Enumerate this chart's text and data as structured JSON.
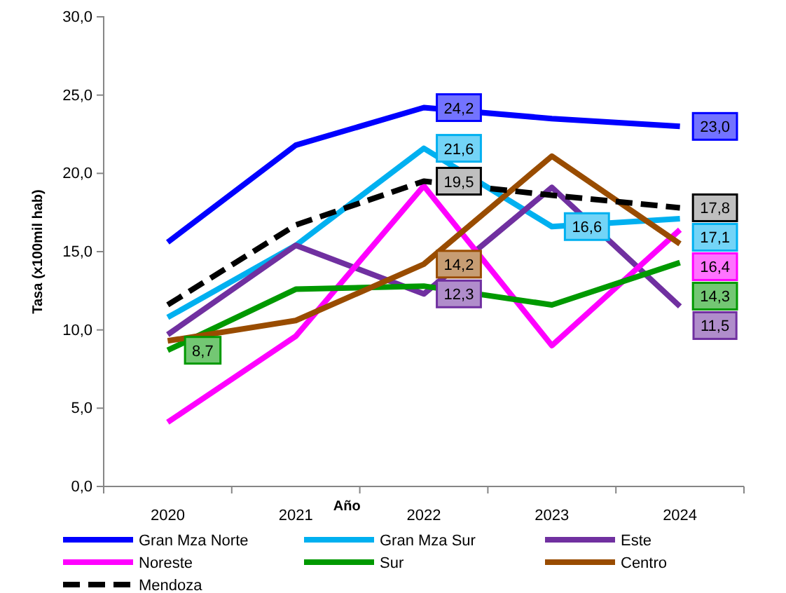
{
  "chart_data": {
    "type": "line",
    "xlabel": "Año",
    "ylabel": "Tasa (x100mil hab)",
    "categories": [
      "2020",
      "2021",
      "2022",
      "2023",
      "2024"
    ],
    "ylim": [
      0,
      30
    ],
    "yticks": [
      {
        "value": 0,
        "label": "0,0"
      },
      {
        "value": 5,
        "label": "5,0"
      },
      {
        "value": 10,
        "label": "10,0"
      },
      {
        "value": 15,
        "label": "15,0"
      },
      {
        "value": 20,
        "label": "20,0"
      },
      {
        "value": 25,
        "label": "25,0"
      },
      {
        "value": 30,
        "label": "30,0"
      }
    ],
    "grid": false,
    "legend": "bottom",
    "marker": "none",
    "series": [
      {
        "name": "Gran Mza Norte",
        "color": "#0000ff",
        "values": [
          15.6,
          21.8,
          24.2,
          23.5,
          23.0
        ],
        "value_labels": [
          null,
          null,
          "24,2",
          null,
          "23,0"
        ]
      },
      {
        "name": "Gran Mza Sur",
        "color": "#00b0f0",
        "values": [
          10.8,
          15.4,
          21.6,
          16.6,
          17.1
        ],
        "value_labels": [
          null,
          null,
          "21,6",
          "16,6",
          "17,1"
        ]
      },
      {
        "name": "Este",
        "color": "#7030a0",
        "values": [
          9.7,
          15.4,
          12.3,
          19.1,
          11.5
        ],
        "value_labels": [
          null,
          null,
          "12,3",
          null,
          "11,5"
        ]
      },
      {
        "name": "Noreste",
        "color": "#ff00ff",
        "values": [
          4.1,
          9.6,
          19.2,
          9.0,
          16.4
        ],
        "value_labels": [
          null,
          null,
          null,
          null,
          "16,4"
        ]
      },
      {
        "name": "Sur",
        "color": "#009900",
        "values": [
          8.7,
          12.6,
          12.8,
          11.6,
          14.3
        ],
        "value_labels": [
          "8,7",
          null,
          null,
          null,
          "14,3"
        ]
      },
      {
        "name": "Centro",
        "color": "#994c00",
        "values": [
          9.3,
          10.6,
          14.2,
          21.1,
          15.5
        ],
        "value_labels": [
          null,
          null,
          "14,2",
          null,
          null
        ]
      },
      {
        "name": "Mendoza",
        "color": "#000000",
        "line_style": "dashed",
        "values": [
          11.6,
          16.7,
          19.5,
          18.6,
          17.8
        ],
        "value_labels": [
          null,
          null,
          "19,5",
          null,
          "17,8"
        ]
      }
    ]
  }
}
